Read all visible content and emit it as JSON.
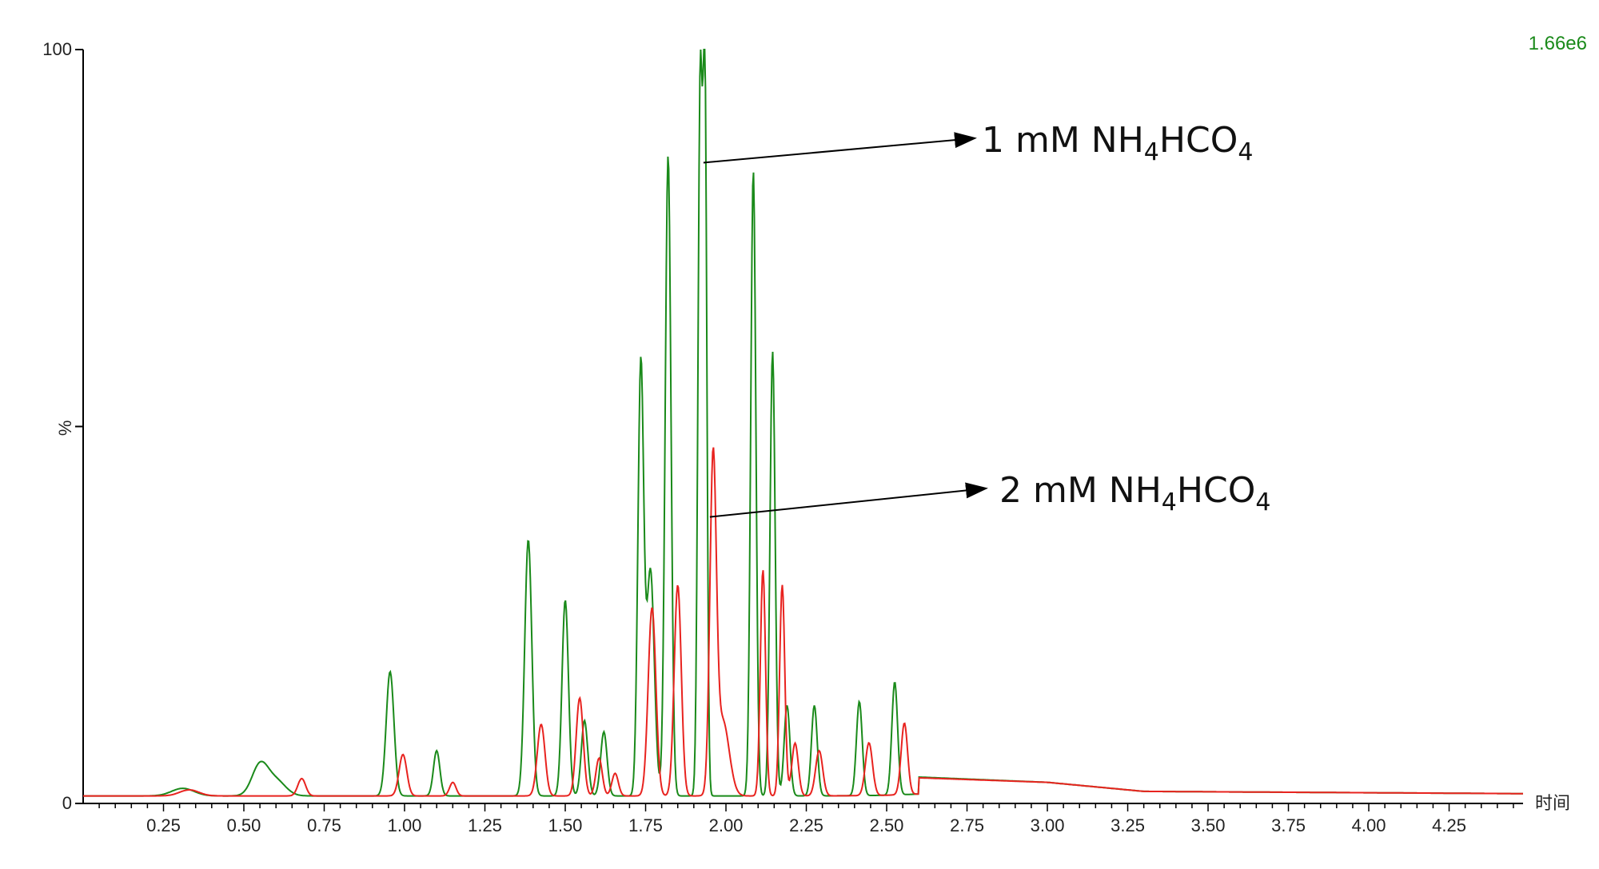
{
  "chart_data": {
    "type": "line",
    "title": "",
    "xlabel": "时间",
    "ylabel": "%",
    "scale_label": "1.66e6",
    "xlim": [
      0.0,
      4.48
    ],
    "ylim": [
      0,
      100
    ],
    "x_ticks": [
      "0.25",
      "0.50",
      "0.75",
      "1.00",
      "1.25",
      "1.50",
      "1.75",
      "2.00",
      "2.25",
      "2.50",
      "2.75",
      "3.00",
      "3.25",
      "3.50",
      "3.75",
      "4.00",
      "4.25"
    ],
    "y_tick_labels": [
      "0",
      "%",
      "100"
    ],
    "grid": false,
    "colors": {
      "series_1mM": "#1a8a1a",
      "series_2mM": "#e8231f",
      "axis": "#000000",
      "scale_label": "#1a8a1a"
    },
    "baseline_1mM": 1.0,
    "baseline_2mM": 1.0,
    "series": [
      {
        "name": "1 mM NH4HCO4",
        "color": "#1a8a1a",
        "peaks": [
          [
            0.31,
            1.0,
            0.035
          ],
          [
            0.55,
            4.0,
            0.025
          ],
          [
            0.6,
            2.0,
            0.03
          ],
          [
            0.955,
            16.5,
            0.012
          ],
          [
            1.1,
            6.0,
            0.01
          ],
          [
            1.385,
            34.0,
            0.011
          ],
          [
            1.5,
            26.0,
            0.01
          ],
          [
            1.56,
            10.0,
            0.01
          ],
          [
            1.62,
            8.5,
            0.01
          ],
          [
            1.735,
            57.0,
            0.009
          ],
          [
            1.765,
            30.0,
            0.012
          ],
          [
            1.82,
            85.0,
            0.009
          ],
          [
            1.92,
            94.0,
            0.007
          ],
          [
            1.935,
            90.0,
            0.006
          ],
          [
            2.085,
            83.0,
            0.008
          ],
          [
            2.145,
            59.0,
            0.008
          ],
          [
            2.19,
            12.0,
            0.009
          ],
          [
            2.275,
            12.0,
            0.009
          ],
          [
            2.415,
            12.5,
            0.009
          ],
          [
            2.525,
            15.0,
            0.009
          ],
          [
            2.95,
            1.2,
            0.2
          ]
        ],
        "tail": [
          [
            2.6,
            2.5
          ],
          [
            3.0,
            1.8
          ],
          [
            3.3,
            0.6
          ],
          [
            4.48,
            0.3
          ]
        ]
      },
      {
        "name": "2 mM NH4HCO4",
        "color": "#e8231f",
        "peaks": [
          [
            0.33,
            0.8,
            0.03
          ],
          [
            0.68,
            2.3,
            0.012
          ],
          [
            0.995,
            5.5,
            0.012
          ],
          [
            1.15,
            1.8,
            0.01
          ],
          [
            1.425,
            9.5,
            0.012
          ],
          [
            1.545,
            13.0,
            0.011
          ],
          [
            1.605,
            5.0,
            0.01
          ],
          [
            1.655,
            3.0,
            0.01
          ],
          [
            1.77,
            25.0,
            0.012
          ],
          [
            1.85,
            28.0,
            0.011
          ],
          [
            1.96,
            43.0,
            0.01
          ],
          [
            1.99,
            10.0,
            0.02
          ],
          [
            2.115,
            30.0,
            0.008
          ],
          [
            2.175,
            28.0,
            0.008
          ],
          [
            2.215,
            7.0,
            0.01
          ],
          [
            2.29,
            6.0,
            0.011
          ],
          [
            2.445,
            7.0,
            0.011
          ],
          [
            2.555,
            9.5,
            0.01
          ],
          [
            2.95,
            1.2,
            0.2
          ]
        ],
        "tail": [
          [
            2.6,
            2.4
          ],
          [
            3.0,
            1.8
          ],
          [
            3.3,
            0.6
          ],
          [
            4.48,
            0.3
          ]
        ]
      }
    ],
    "annotations": [
      {
        "name": "anno-1mM",
        "text_main": "1 mM NH",
        "sub1": "4",
        "text_mid": "HCO",
        "sub2": "4",
        "arrow_from": [
          1.93,
          85
        ],
        "arrow_to_text": "upper"
      },
      {
        "name": "anno-2mM",
        "text_main": "2 mM NH",
        "sub1": "4",
        "text_mid": "HCO",
        "sub2": "4",
        "arrow_from": [
          1.95,
          38
        ],
        "arrow_to_text": "lower"
      }
    ]
  }
}
